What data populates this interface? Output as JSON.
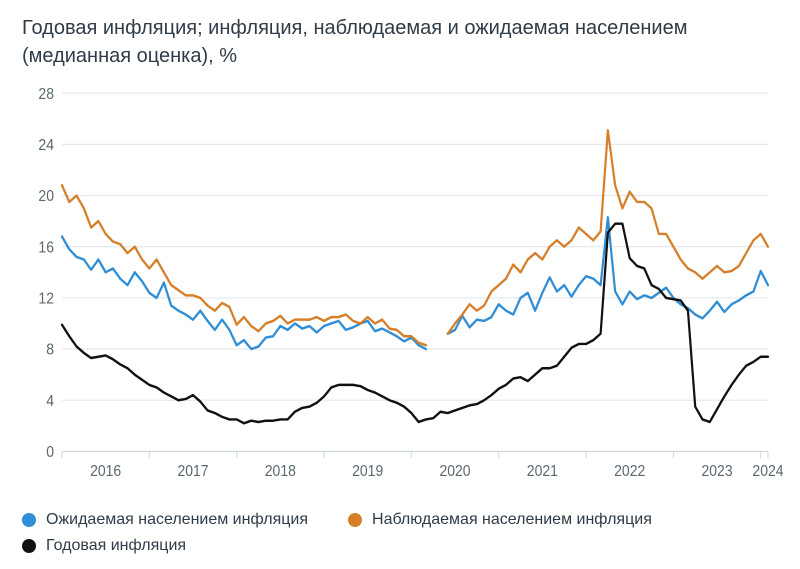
{
  "title": "Годовая инфляция; инфляция, наблюдаемая и ожидаемая населением (медианная оценка), %",
  "chart": {
    "type": "line",
    "background_color": "#ffffff",
    "plot_border_color": "#cfd6dc",
    "grid_color": "#e3e7eb",
    "axis_font_color": "#5a6770",
    "axis_font_size": 14,
    "ylim": [
      0,
      28
    ],
    "ytick_step": 4,
    "yticks": [
      0,
      4,
      8,
      12,
      16,
      20,
      24,
      28
    ],
    "x_start_year": 2016,
    "x_end_year": 2024,
    "x_year_labels": [
      "2016",
      "2017",
      "2018",
      "2019",
      "2020",
      "2021",
      "2022",
      "2023",
      "2024"
    ],
    "line_width": 2.2,
    "series": [
      {
        "key": "expected",
        "name": "Ожидаемая населением инфляция",
        "color": "#2f8ed6",
        "points_per_year": 12,
        "values": [
          16.8,
          15.8,
          15.2,
          15.0,
          14.2,
          15.0,
          14.0,
          14.3,
          13.5,
          13.0,
          14.0,
          13.3,
          12.4,
          12.0,
          13.2,
          11.4,
          11.0,
          10.7,
          10.3,
          11.0,
          10.2,
          9.5,
          10.3,
          9.5,
          8.3,
          8.7,
          8.0,
          8.2,
          8.9,
          9.0,
          9.8,
          9.5,
          10.0,
          9.6,
          9.8,
          9.3,
          9.8,
          10.0,
          10.2,
          9.5,
          9.7,
          10.0,
          10.2,
          9.4,
          9.6,
          9.3,
          9.0,
          8.6,
          8.9,
          8.3,
          8.0,
          null,
          null,
          9.2,
          9.5,
          10.6,
          9.7,
          10.3,
          10.2,
          10.5,
          11.5,
          11.0,
          10.7,
          12.0,
          12.4,
          11.0,
          12.4,
          13.6,
          12.5,
          13.0,
          12.1,
          13.0,
          13.7,
          13.5,
          13.0,
          18.3,
          12.5,
          11.5,
          12.5,
          11.9,
          12.2,
          12.0,
          12.4,
          12.8,
          12.0,
          11.5,
          11.2,
          10.7,
          10.4,
          11.0,
          11.7,
          10.9,
          11.5,
          11.8,
          12.2,
          12.5,
          14.1,
          13.0
        ]
      },
      {
        "key": "observed",
        "name": "Наблюдаемая населением инфляция",
        "color": "#d67f2b",
        "points_per_year": 12,
        "values": [
          20.8,
          19.5,
          20.0,
          19.0,
          17.5,
          18.0,
          17.0,
          16.4,
          16.2,
          15.5,
          16.0,
          15.0,
          14.3,
          15.0,
          14.0,
          13.0,
          12.6,
          12.2,
          12.2,
          12.0,
          11.4,
          11.0,
          11.6,
          11.3,
          9.9,
          10.5,
          9.8,
          9.4,
          10.0,
          10.2,
          10.6,
          10.0,
          10.3,
          10.3,
          10.3,
          10.5,
          10.2,
          10.5,
          10.5,
          10.7,
          10.2,
          10.0,
          10.5,
          10.0,
          10.3,
          9.6,
          9.5,
          9.0,
          9.0,
          8.5,
          8.3,
          null,
          null,
          9.2,
          10.0,
          10.7,
          11.5,
          11.0,
          11.4,
          12.5,
          13.0,
          13.5,
          14.6,
          14.0,
          15.0,
          15.5,
          15.0,
          16.0,
          16.5,
          16.0,
          16.5,
          17.5,
          17.0,
          16.5,
          17.2,
          25.1,
          20.8,
          19.0,
          20.3,
          19.5,
          19.5,
          19.0,
          17.0,
          17.0,
          16.0,
          15.0,
          14.3,
          14.0,
          13.5,
          14.0,
          14.5,
          14.0,
          14.1,
          14.5,
          15.5,
          16.5,
          17.0,
          16.0
        ]
      },
      {
        "key": "annual",
        "name": "Годовая инфляция",
        "color": "#111111",
        "points_per_year": 12,
        "values": [
          9.9,
          9.0,
          8.2,
          7.7,
          7.3,
          7.4,
          7.5,
          7.2,
          6.8,
          6.5,
          6.0,
          5.6,
          5.2,
          5.0,
          4.6,
          4.3,
          4.0,
          4.1,
          4.4,
          3.9,
          3.2,
          3.0,
          2.7,
          2.5,
          2.5,
          2.2,
          2.4,
          2.3,
          2.4,
          2.4,
          2.5,
          2.5,
          3.1,
          3.4,
          3.5,
          3.8,
          4.3,
          5.0,
          5.2,
          5.2,
          5.2,
          5.1,
          4.8,
          4.6,
          4.3,
          4.0,
          3.8,
          3.5,
          3.0,
          2.3,
          2.5,
          2.6,
          3.1,
          3.0,
          3.2,
          3.4,
          3.6,
          3.7,
          4.0,
          4.4,
          4.9,
          5.2,
          5.7,
          5.8,
          5.5,
          6.0,
          6.5,
          6.5,
          6.7,
          7.4,
          8.1,
          8.4,
          8.4,
          8.7,
          9.2,
          17.1,
          17.8,
          17.8,
          15.1,
          14.5,
          14.3,
          13.0,
          12.7,
          12.0,
          11.9,
          11.8,
          11.0,
          3.5,
          2.5,
          2.3,
          3.3,
          4.3,
          5.2,
          6.0,
          6.7,
          7.0,
          7.4,
          7.4
        ]
      }
    ]
  },
  "legend": {
    "expected": "Ожидаемая населением инфляция",
    "observed": "Наблюдаемая населением инфляция",
    "annual": "Годовая инфляция"
  }
}
